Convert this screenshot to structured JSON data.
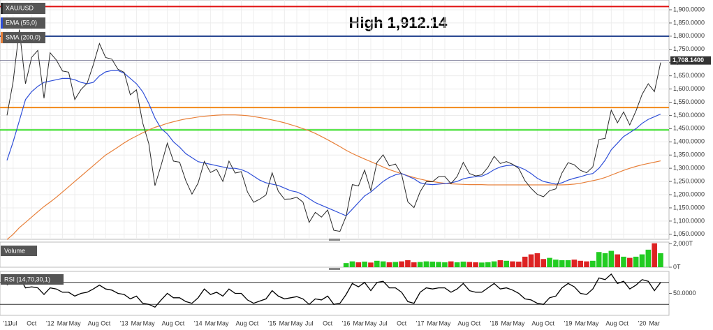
{
  "chart_data": [
    {
      "type": "line",
      "categories": [
        "'11",
        "Jul",
        null,
        null,
        "Oct",
        null,
        null,
        "'12",
        null,
        "Mar",
        null,
        "May",
        null,
        null,
        "Aug",
        null,
        "Oct",
        null,
        null,
        "'13",
        null,
        "Mar",
        null,
        "May",
        null,
        null,
        "Aug",
        null,
        "Oct",
        null,
        null,
        "'14",
        null,
        "Mar",
        null,
        "May",
        null,
        null,
        "Aug",
        null,
        "Oct",
        null,
        null,
        "'15",
        null,
        "Mar",
        null,
        "May",
        null,
        "Jul",
        null,
        null,
        "Oct",
        null,
        null,
        "'16",
        null,
        "Mar",
        null,
        "May",
        null,
        "Jul",
        null,
        null,
        "Oct",
        null,
        null,
        "'17",
        null,
        "Mar",
        null,
        "May",
        null,
        null,
        "Aug",
        null,
        "Oct",
        null,
        null,
        "'18",
        null,
        "Mar",
        null,
        "May",
        null,
        null,
        "Aug",
        null,
        "Oct",
        null,
        null,
        "'19",
        null,
        "Mar",
        null,
        "May",
        null,
        null,
        "Aug",
        null,
        "Oct",
        null,
        null,
        "'20",
        null,
        "Mar",
        null
      ],
      "series": [
        {
          "name": "XAU/USD",
          "color": "#2a2a2a",
          "values": [
            1500,
            1628,
            1825,
            1620,
            1720,
            1746,
            1565,
            1737,
            1710,
            1668,
            1664,
            1560,
            1598,
            1622,
            1692,
            1772,
            1719,
            1713,
            1675,
            1663,
            1578,
            1597,
            1472,
            1393,
            1234,
            1312,
            1395,
            1327,
            1323,
            1253,
            1202,
            1244,
            1326,
            1284,
            1296,
            1250,
            1327,
            1282,
            1287,
            1210,
            1171,
            1183,
            1199,
            1283,
            1213,
            1183,
            1184,
            1190,
            1172,
            1095,
            1133,
            1115,
            1142,
            1065,
            1061,
            1118,
            1238,
            1233,
            1293,
            1215,
            1322,
            1351,
            1309,
            1316,
            1277,
            1173,
            1151,
            1211,
            1249,
            1249,
            1268,
            1269,
            1242,
            1269,
            1322,
            1280,
            1271,
            1275,
            1303,
            1345,
            1318,
            1325,
            1315,
            1299,
            1253,
            1224,
            1201,
            1192,
            1215,
            1222,
            1282,
            1321,
            1313,
            1292,
            1283,
            1305,
            1409,
            1413,
            1520,
            1472,
            1513,
            1464,
            1517,
            1580,
            1620,
            1590,
            1700
          ]
        },
        {
          "name": "EMA (55,0)",
          "color": "#2f4fd8",
          "values": [
            1330,
            1400,
            1480,
            1560,
            1590,
            1610,
            1625,
            1630,
            1635,
            1640,
            1640,
            1635,
            1625,
            1620,
            1625,
            1650,
            1665,
            1670,
            1670,
            1660,
            1640,
            1620,
            1590,
            1545,
            1490,
            1450,
            1430,
            1400,
            1380,
            1355,
            1340,
            1325,
            1320,
            1315,
            1310,
            1305,
            1300,
            1300,
            1295,
            1285,
            1270,
            1255,
            1245,
            1240,
            1235,
            1225,
            1215,
            1210,
            1200,
            1185,
            1170,
            1160,
            1150,
            1140,
            1130,
            1120,
            1145,
            1170,
            1195,
            1210,
            1230,
            1250,
            1265,
            1275,
            1280,
            1270,
            1260,
            1245,
            1240,
            1238,
            1240,
            1242,
            1245,
            1250,
            1260,
            1265,
            1268,
            1270,
            1280,
            1295,
            1305,
            1310,
            1312,
            1305,
            1295,
            1280,
            1262,
            1250,
            1245,
            1240,
            1245,
            1255,
            1262,
            1268,
            1275,
            1280,
            1300,
            1330,
            1370,
            1395,
            1420,
            1435,
            1450,
            1470,
            1485,
            1495,
            1505
          ]
        },
        {
          "name": "SMA (200,0)",
          "color": "#e8803a",
          "values": [
            1030,
            1050,
            1075,
            1095,
            1115,
            1135,
            1155,
            1172,
            1190,
            1210,
            1230,
            1250,
            1270,
            1290,
            1310,
            1330,
            1350,
            1365,
            1380,
            1396,
            1410,
            1422,
            1434,
            1445,
            1455,
            1462,
            1470,
            1476,
            1482,
            1487,
            1490,
            1494,
            1497,
            1499,
            1501,
            1502,
            1502,
            1502,
            1501,
            1499,
            1496,
            1492,
            1488,
            1483,
            1478,
            1472,
            1465,
            1458,
            1450,
            1442,
            1432,
            1420,
            1408,
            1395,
            1382,
            1368,
            1356,
            1345,
            1335,
            1325,
            1315,
            1305,
            1295,
            1287,
            1279,
            1272,
            1265,
            1259,
            1254,
            1250,
            1246,
            1243,
            1241,
            1240,
            1239,
            1238,
            1238,
            1238,
            1237,
            1237,
            1237,
            1237,
            1237,
            1237,
            1237,
            1237,
            1237,
            1237,
            1237,
            1237,
            1237,
            1238,
            1240,
            1243,
            1248,
            1253,
            1258,
            1265,
            1274,
            1283,
            1292,
            1300,
            1307,
            1313,
            1318,
            1323,
            1328
          ]
        }
      ],
      "ylim": [
        1031,
        1937
      ],
      "yticks": [
        {
          "value": 1900,
          "label": "1,900.0000"
        },
        {
          "value": 1850,
          "label": "1,850.0000"
        },
        {
          "value": 1800,
          "label": "1,800.0000"
        },
        {
          "value": 1750,
          "label": "1,750.0000"
        },
        {
          "value": 1700,
          "label": "1,700.0000"
        },
        {
          "value": 1650,
          "label": "1,650.0000"
        },
        {
          "value": 1600,
          "label": "1,600.0000"
        },
        {
          "value": 1550,
          "label": "1,550.0000"
        },
        {
          "value": 1500,
          "label": "1,500.0000"
        },
        {
          "value": 1450,
          "label": "1,450.0000"
        },
        {
          "value": 1400,
          "label": "1,400.0000"
        },
        {
          "value": 1350,
          "label": "1,350.0000"
        },
        {
          "value": 1300,
          "label": "1,300.0000"
        },
        {
          "value": 1250,
          "label": "1,250.0000"
        },
        {
          "value": 1200,
          "label": "1,200.0000"
        },
        {
          "value": 1150,
          "label": "1,150.0000"
        },
        {
          "value": 1100,
          "label": "1,100.0000"
        },
        {
          "value": 1050,
          "label": "1,050.0000"
        }
      ],
      "grid": true,
      "levels": [
        {
          "value": 1912.14,
          "color": "#e01010"
        },
        {
          "value": 1800,
          "color": "#1a3a8a"
        },
        {
          "value": 1530,
          "color": "#f28a1a"
        },
        {
          "value": 1445,
          "color": "#33dd22"
        }
      ],
      "current": {
        "value": 1708.14,
        "label": "1,708.1400",
        "color": "#6a6a8a"
      },
      "annotation": "High 1,912.14"
    },
    {
      "type": "bar",
      "title": "Volume",
      "up_color": "#22cc22",
      "down_color": "#dd2222",
      "values": [
        null,
        null,
        null,
        null,
        null,
        null,
        null,
        null,
        null,
        null,
        null,
        null,
        null,
        null,
        null,
        null,
        null,
        null,
        null,
        null,
        null,
        null,
        null,
        null,
        null,
        null,
        null,
        null,
        null,
        null,
        null,
        null,
        null,
        null,
        null,
        null,
        null,
        null,
        null,
        null,
        null,
        null,
        null,
        null,
        null,
        null,
        null,
        null,
        null,
        null,
        null,
        null,
        null,
        null,
        null,
        350,
        500,
        420,
        480,
        400,
        550,
        500,
        420,
        450,
        500,
        600,
        420,
        450,
        500,
        480,
        450,
        420,
        500,
        420,
        480,
        450,
        420,
        400,
        430,
        500,
        600,
        550,
        500,
        480,
        900,
        1100,
        1200,
        700,
        800,
        650,
        600,
        600,
        650,
        550,
        500,
        550,
        1300,
        1200,
        1400,
        1100,
        900,
        800,
        900,
        1100,
        1500,
        2050,
        1200
      ],
      "ylim": [
        0,
        2150
      ],
      "yticks": [
        {
          "value": 2000,
          "label": "2,000T"
        },
        {
          "value": 0,
          "label": "0T"
        }
      ]
    },
    {
      "type": "line",
      "title": "RSI (14,70,30,1)",
      "color": "#000000",
      "values": [
        65,
        75,
        80,
        60,
        62,
        60,
        48,
        60,
        58,
        52,
        52,
        45,
        50,
        52,
        58,
        65,
        58,
        56,
        50,
        48,
        40,
        45,
        32,
        30,
        25,
        38,
        50,
        42,
        42,
        35,
        32,
        42,
        58,
        48,
        52,
        45,
        58,
        50,
        50,
        38,
        32,
        36,
        40,
        55,
        45,
        40,
        42,
        44,
        40,
        30,
        40,
        38,
        45,
        30,
        32,
        48,
        68,
        62,
        70,
        55,
        70,
        72,
        60,
        60,
        52,
        35,
        32,
        52,
        60,
        58,
        60,
        60,
        52,
        58,
        68,
        55,
        52,
        52,
        60,
        68,
        58,
        60,
        56,
        50,
        40,
        38,
        32,
        30,
        42,
        45,
        60,
        68,
        62,
        50,
        48,
        58,
        78,
        75,
        85,
        68,
        72,
        58,
        65,
        75,
        72,
        55,
        70
      ],
      "ylim": [
        10,
        90
      ],
      "yticks": [
        {
          "value": 50,
          "label": "50.0000"
        }
      ],
      "levels": [
        30,
        70
      ]
    }
  ]
}
